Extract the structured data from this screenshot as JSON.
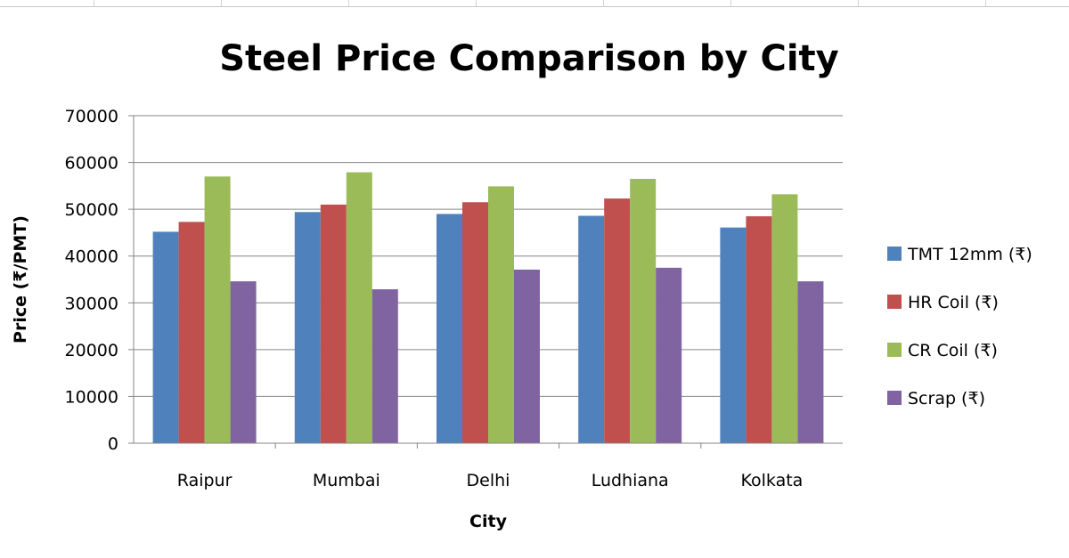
{
  "chart_data": {
    "type": "bar",
    "title": "Steel Price Comparison by City",
    "xlabel": "City",
    "ylabel": "Price (₹/PMT)",
    "ylim": [
      0,
      70000
    ],
    "yticks": [
      "0",
      "10000",
      "20000",
      "30000",
      "40000",
      "50000",
      "60000",
      "70000"
    ],
    "grid": true,
    "legend_position": "right",
    "categories": [
      "Raipur",
      "Mumbai",
      "Delhi",
      "Ludhiana",
      "Kolkata"
    ],
    "series": [
      {
        "name": "TMT 12mm (₹)",
        "color": "#4f81bd",
        "values": [
          45200,
          49400,
          49000,
          48600,
          46100
        ]
      },
      {
        "name": "HR Coil (₹)",
        "color": "#c0504d",
        "values": [
          47300,
          51000,
          51500,
          52300,
          48500
        ]
      },
      {
        "name": "CR Coil (₹)",
        "color": "#9bbb59",
        "values": [
          57000,
          57900,
          54900,
          56500,
          53200
        ]
      },
      {
        "name": "Scrap (₹)",
        "color": "#8064a2",
        "values": [
          34600,
          32900,
          37100,
          37500,
          34600
        ]
      }
    ]
  }
}
